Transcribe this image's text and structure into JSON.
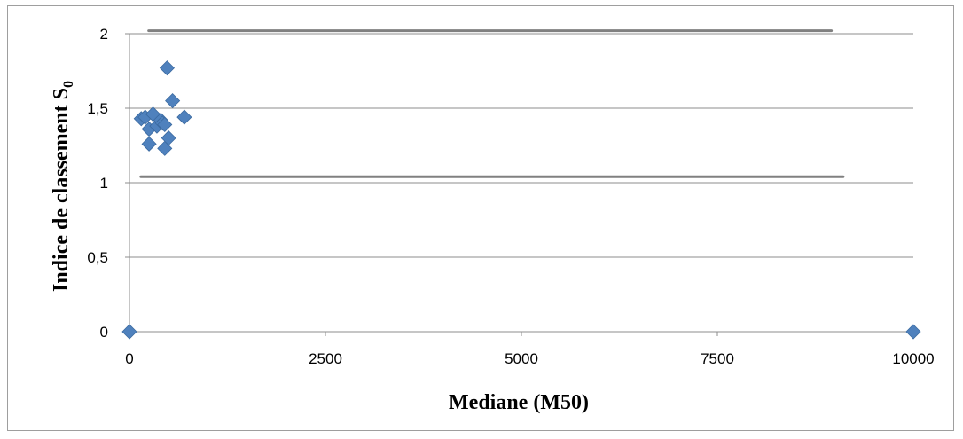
{
  "chart_data": {
    "type": "scatter",
    "xlabel": "Mediane (M50)",
    "ylabel": {
      "text": "Indice de classement S",
      "subscript": "0"
    },
    "xlim": [
      0,
      10000
    ],
    "ylim": [
      0,
      2
    ],
    "x_ticks": [
      0,
      2500,
      5000,
      7500,
      10000
    ],
    "x_tick_labels": [
      "0",
      "2500",
      "5000",
      "7500",
      "10000"
    ],
    "y_ticks": [
      0,
      0.5,
      1,
      1.5,
      2
    ],
    "y_tick_labels": [
      "0",
      "0,5",
      "1",
      "1,5",
      "2"
    ],
    "grid": "horizontal",
    "legend": "none",
    "marker": "diamond",
    "marker_color": "#4f81bd",
    "reference_lines": [
      {
        "y": 2.02,
        "x_start": 200,
        "x_end": 9000,
        "color": "#808080"
      },
      {
        "y": 1.04,
        "x_start": 100,
        "x_end": 9150,
        "color": "#808080"
      }
    ],
    "series": [
      {
        "x": [
          0,
          10000,
          150,
          200,
          250,
          250,
          300,
          350,
          400,
          420,
          450,
          450,
          480,
          500,
          550,
          700
        ],
        "y": [
          0,
          0,
          1.43,
          1.44,
          1.26,
          1.36,
          1.46,
          1.38,
          1.42,
          1.4,
          1.23,
          1.39,
          1.77,
          1.3,
          1.55,
          1.44
        ]
      }
    ]
  }
}
